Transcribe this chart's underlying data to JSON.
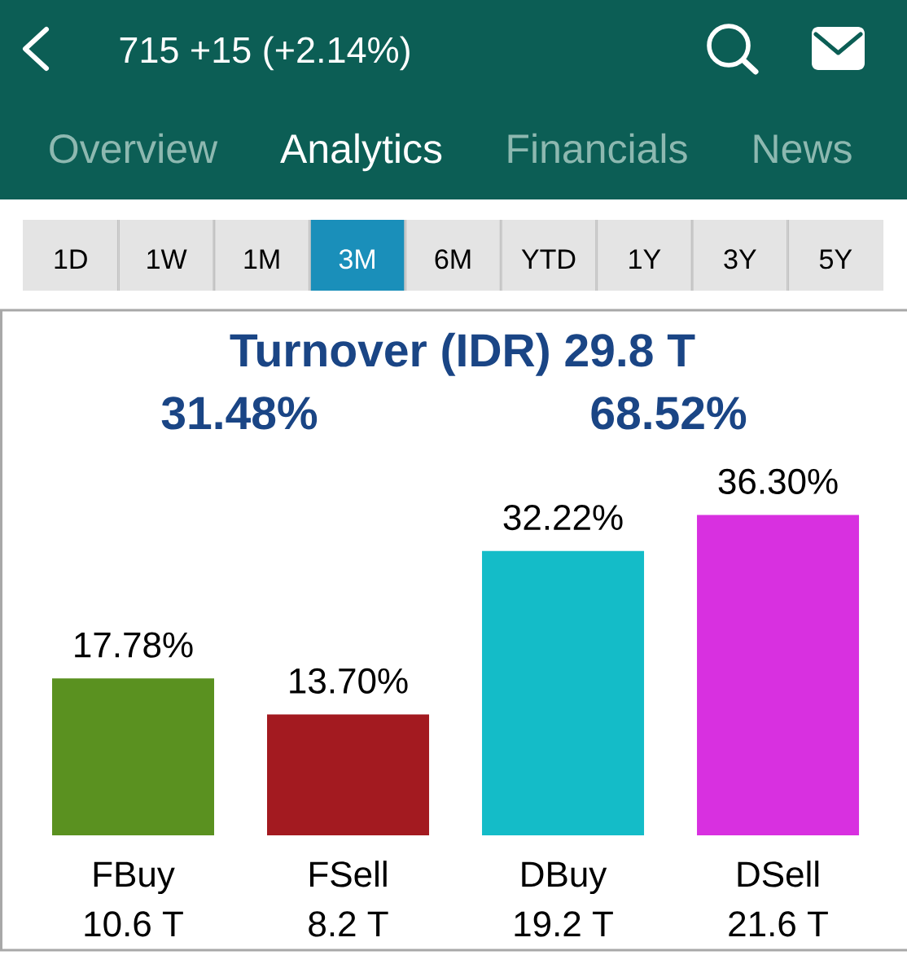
{
  "chart_data": {
    "type": "bar",
    "title": "Turnover (IDR) 29.8 T",
    "categories": [
      "FBuy",
      "FSell",
      "DBuy",
      "DSell"
    ],
    "values": [
      17.78,
      13.7,
      32.22,
      36.3
    ],
    "colors": [
      "#5a9120",
      "#a31a20",
      "#14bcc8",
      "#d830e0"
    ],
    "value_labels": [
      "17.78%",
      "13.70%",
      "32.22%",
      "36.30%"
    ],
    "tick_labels": "x",
    "annotations": [
      "715 +15 (+2.14%)",
      "Overview",
      "Analytics",
      "Financials",
      "News",
      "1D",
      "1W",
      "1M",
      "3M",
      "6M",
      "YTD",
      "1Y",
      "3Y",
      "5Y",
      "31.48%",
      "68.52%",
      "10.6 T",
      "8.2 T",
      "19.2 T",
      "21.6 T"
    ]
  }
}
